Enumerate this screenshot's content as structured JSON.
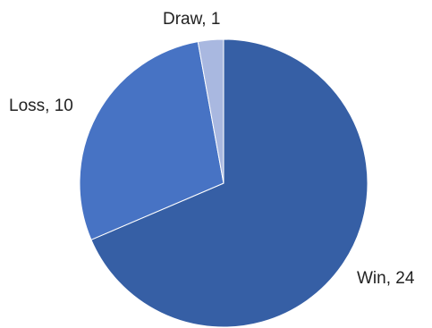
{
  "chart_data": {
    "type": "pie",
    "categories": [
      "Win",
      "Loss",
      "Draw"
    ],
    "values": [
      24,
      10,
      1
    ],
    "labels": [
      "Win, 24",
      "Loss, 10",
      "Draw, 1"
    ],
    "colors": [
      "#365fa5",
      "#4773c4",
      "#a9b8e0"
    ],
    "slice_outline": "#ffffff",
    "start": "12 o'clock",
    "direction": "clockwise",
    "legend": "none"
  }
}
